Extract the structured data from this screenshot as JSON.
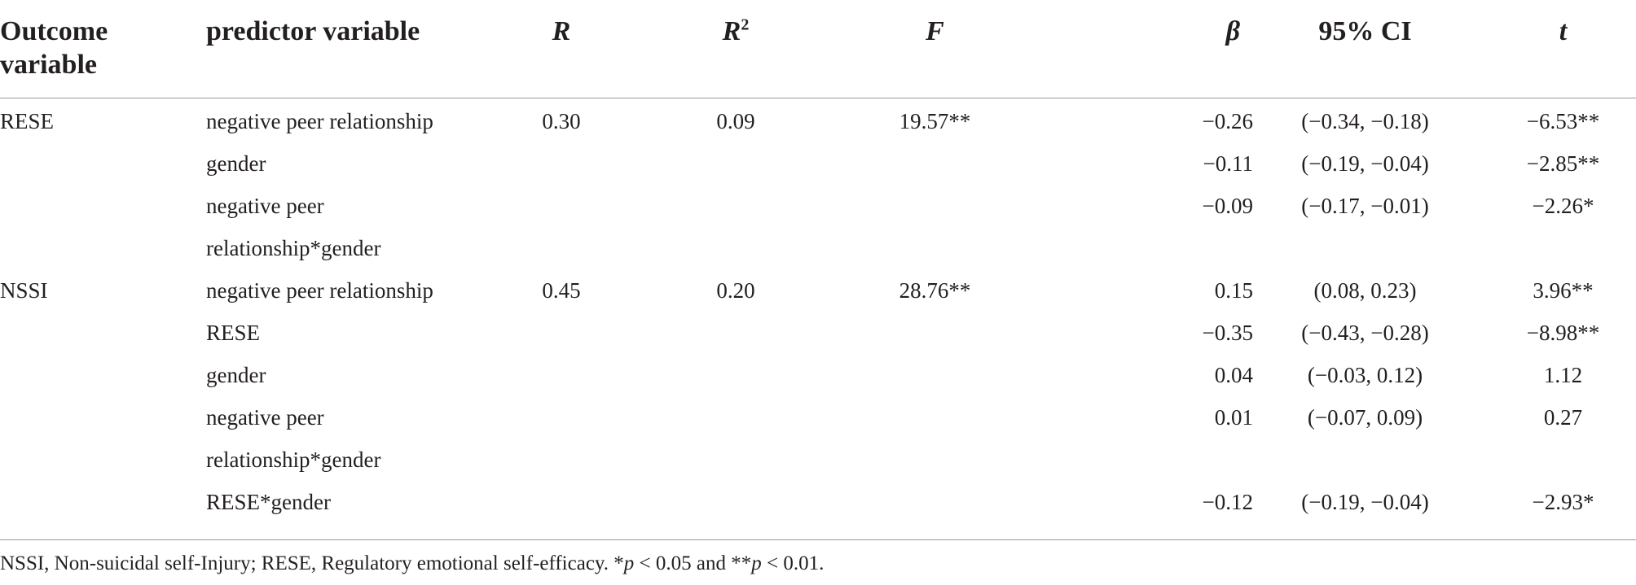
{
  "table": {
    "headers": {
      "outcome": "Outcome variable",
      "predictor": "predictor variable",
      "r": "R",
      "r2": "R",
      "r2_sup": "2",
      "f": "F",
      "beta": "β",
      "ci": "95% CI",
      "t": "t"
    },
    "rows": [
      {
        "outcome": "RESE",
        "predictor": "negative peer relationship",
        "r": "0.30",
        "r2": "0.09",
        "f": "19.57**",
        "beta": "−0.26",
        "ci": "(−0.34, −0.18)",
        "t": "−6.53**"
      },
      {
        "outcome": "",
        "predictor": "gender",
        "r": "",
        "r2": "",
        "f": "",
        "beta": "−0.11",
        "ci": "(−0.19, −0.04)",
        "t": "−2.85**"
      },
      {
        "outcome": "",
        "predictor": "negative peer",
        "r": "",
        "r2": "",
        "f": "",
        "beta": "−0.09",
        "ci": "(−0.17, −0.01)",
        "t": "−2.26*"
      },
      {
        "outcome": "",
        "predictor": "relationship*gender",
        "r": "",
        "r2": "",
        "f": "",
        "beta": "",
        "ci": "",
        "t": ""
      },
      {
        "outcome": "NSSI",
        "predictor": "negative peer relationship",
        "r": "0.45",
        "r2": "0.20",
        "f": "28.76**",
        "beta": "0.15",
        "ci": "(0.08, 0.23)",
        "t": "3.96**"
      },
      {
        "outcome": "",
        "predictor": "RESE",
        "r": "",
        "r2": "",
        "f": "",
        "beta": "−0.35",
        "ci": "(−0.43, −0.28)",
        "t": "−8.98**"
      },
      {
        "outcome": "",
        "predictor": "gender",
        "r": "",
        "r2": "",
        "f": "",
        "beta": "0.04",
        "ci": "(−0.03, 0.12)",
        "t": "1.12"
      },
      {
        "outcome": "",
        "predictor": "negative peer",
        "r": "",
        "r2": "",
        "f": "",
        "beta": "0.01",
        "ci": "(−0.07, 0.09)",
        "t": "0.27"
      },
      {
        "outcome": "",
        "predictor": "relationship*gender",
        "r": "",
        "r2": "",
        "f": "",
        "beta": "",
        "ci": "",
        "t": ""
      },
      {
        "outcome": "",
        "predictor": "RESE*gender",
        "r": "",
        "r2": "",
        "f": "",
        "beta": "−0.12",
        "ci": "(−0.19, −0.04)",
        "t": "−2.93*"
      }
    ]
  },
  "footnote": {
    "part1": "NSSI, Non-suicidal self-Injury; RESE, Regulatory emotional self-efficacy. *",
    "p1": "p",
    "part2": " < 0.05 and **",
    "p2": "p",
    "part3": " < 0.01."
  }
}
